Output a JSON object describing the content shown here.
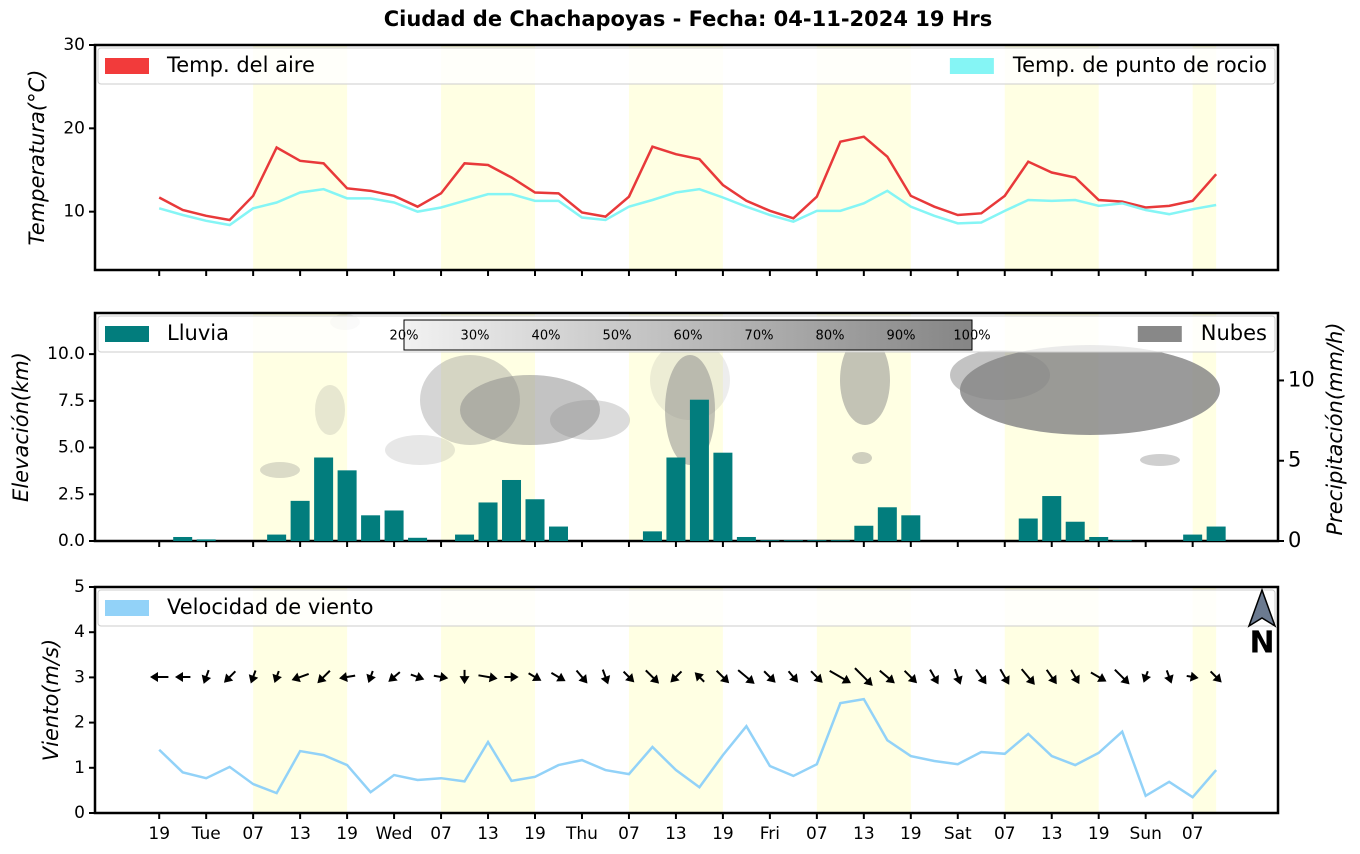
{
  "title": "Ciudad de Chachapoyas   -   Fecha: 04-11-2024 19 Hrs",
  "compass": "N",
  "chart_data": [
    {
      "type": "line",
      "ylabel": "Temperatura(°C)",
      "ylim": [
        3,
        30
      ],
      "yticks": [
        10,
        20,
        30
      ],
      "series": [
        {
          "name": "Temp. del aire",
          "color": "#e8393a",
          "legend_fill": "#f23b3b",
          "values": [
            11.7,
            10.2,
            9.5,
            9.0,
            11.9,
            17.7,
            16.1,
            15.8,
            12.8,
            12.5,
            11.9,
            10.6,
            12.2,
            15.8,
            15.6,
            14.1,
            12.3,
            12.2,
            9.9,
            9.4,
            11.8,
            17.8,
            16.9,
            16.3,
            13.2,
            11.3,
            10.1,
            9.2,
            11.8,
            18.4,
            19.0,
            16.6,
            11.9,
            10.6,
            9.6,
            9.8,
            11.9,
            16.0,
            14.7,
            14.1,
            11.4,
            11.2,
            10.5,
            10.7,
            11.3,
            14.5
          ]
        },
        {
          "name": "Temp. de punto de rocio",
          "color": "#85f5f5",
          "legend_fill": "#85f5f5",
          "values": [
            10.4,
            9.6,
            8.9,
            8.4,
            10.4,
            11.1,
            12.3,
            12.7,
            11.6,
            11.6,
            11.1,
            10.0,
            10.5,
            11.3,
            12.1,
            12.1,
            11.3,
            11.3,
            9.3,
            9.0,
            10.6,
            11.4,
            12.3,
            12.7,
            11.7,
            10.6,
            9.6,
            8.8,
            10.1,
            10.1,
            11.0,
            12.5,
            10.6,
            9.5,
            8.6,
            8.7,
            10.1,
            11.4,
            11.3,
            11.4,
            10.7,
            11.0,
            10.2,
            9.7,
            10.3,
            10.8
          ]
        }
      ]
    },
    {
      "type": "bar",
      "ylabel": "Elevación(km)",
      "y2label": "Precipitación(mm/h)",
      "ylim": [
        0,
        12.2
      ],
      "yticks": [
        {
          "value": 0,
          "label": "0.0"
        },
        2.5,
        {
          "value": 5,
          "label": "5.0"
        },
        7.5,
        {
          "value": 10,
          "label": "10.0"
        }
      ],
      "y2lim": [
        0,
        14.2
      ],
      "y2ticks": [
        0,
        5,
        10
      ],
      "series": [
        {
          "name": "Lluvia",
          "color": "#027d7d",
          "axis": "y2",
          "values": [
            0,
            0.25,
            0.1,
            0,
            0,
            0.4,
            2.5,
            5.2,
            4.4,
            1.6,
            1.9,
            0.2,
            0,
            0.4,
            2.4,
            3.8,
            2.6,
            0.9,
            0,
            0,
            0,
            0.6,
            5.2,
            8.8,
            5.5,
            0.25,
            0.05,
            0.05,
            0.05,
            0.05,
            0.95,
            2.1,
            1.6,
            0,
            0,
            0,
            0,
            1.4,
            2.8,
            1.2,
            0.25,
            0.05,
            0,
            0,
            0.4,
            0.9
          ]
        }
      ],
      "clouds": {
        "name": "Nubes",
        "color": "#888888",
        "colorbar": [
          "20%",
          "30%",
          "40%",
          "50%",
          "60%",
          "70%",
          "80%",
          "90%",
          "100%"
        ]
      }
    },
    {
      "type": "line",
      "ylabel": "Viento(m/s)",
      "ylim": [
        0,
        5
      ],
      "yticks": [
        0,
        1,
        2,
        3,
        4,
        5
      ],
      "series": [
        {
          "name": "Velocidad de viento",
          "color": "#92d2f8",
          "legend_fill": "#92d2f8",
          "values": [
            1.4,
            0.9,
            0.77,
            1.02,
            0.64,
            0.44,
            1.37,
            1.28,
            1.06,
            0.46,
            0.84,
            0.73,
            0.77,
            0.7,
            1.57,
            0.71,
            0.8,
            1.06,
            1.17,
            0.95,
            0.86,
            1.46,
            0.95,
            0.57,
            1.28,
            1.92,
            1.04,
            0.82,
            1.08,
            2.43,
            2.52,
            1.61,
            1.26,
            1.15,
            1.08,
            1.35,
            1.31,
            1.75,
            1.26,
            1.06,
            1.33,
            1.8,
            0.38,
            0.69,
            0.35,
            0.95
          ]
        }
      ],
      "directions": [
        270,
        270,
        200,
        225,
        200,
        200,
        250,
        225,
        260,
        200,
        230,
        110,
        100,
        180,
        100,
        90,
        120,
        120,
        140,
        160,
        135,
        135,
        225,
        315,
        135,
        130,
        135,
        140,
        135,
        120,
        135,
        130,
        135,
        150,
        160,
        145,
        150,
        140,
        145,
        150,
        120,
        135,
        200,
        160,
        100,
        135
      ],
      "x": [
        0,
        3,
        6,
        9,
        12,
        15,
        18,
        21,
        24,
        27,
        30,
        33,
        36,
        39,
        42,
        45,
        48,
        51,
        54,
        57,
        60,
        63,
        66,
        69,
        72,
        75,
        78,
        81,
        84,
        87,
        90,
        93,
        96,
        99,
        102,
        105,
        108,
        111,
        114,
        117,
        120,
        123,
        126,
        129,
        132,
        135
      ],
      "xlim": [
        -8.2,
        142.9
      ],
      "xticks": [
        {
          "value": 0,
          "label": "19"
        },
        {
          "value": 6,
          "label": "Tue"
        },
        {
          "value": 12,
          "label": "07"
        },
        {
          "value": 18,
          "label": "13"
        },
        {
          "value": 24,
          "label": "19"
        },
        {
          "value": 30,
          "label": "Wed"
        },
        {
          "value": 36,
          "label": "07"
        },
        {
          "value": 42,
          "label": "13"
        },
        {
          "value": 48,
          "label": "19"
        },
        {
          "value": 54,
          "label": "Thu"
        },
        {
          "value": 60,
          "label": "07"
        },
        {
          "value": 66,
          "label": "13"
        },
        {
          "value": 72,
          "label": "19"
        },
        {
          "value": 78,
          "label": "Fri"
        },
        {
          "value": 84,
          "label": "07"
        },
        {
          "value": 90,
          "label": "13"
        },
        {
          "value": 96,
          "label": "19"
        },
        {
          "value": 102,
          "label": "Sat"
        },
        {
          "value": 108,
          "label": "07"
        },
        {
          "value": 114,
          "label": "13"
        },
        {
          "value": 120,
          "label": "19"
        },
        {
          "value": 126,
          "label": "Sun"
        },
        {
          "value": 132,
          "label": "07"
        }
      ],
      "shading": [
        [
          12,
          24
        ],
        [
          36,
          48
        ],
        [
          60,
          72
        ],
        [
          84,
          96
        ],
        [
          108,
          120
        ],
        [
          132,
          135
        ]
      ],
      "shading_color": "#ffffe3"
    }
  ]
}
